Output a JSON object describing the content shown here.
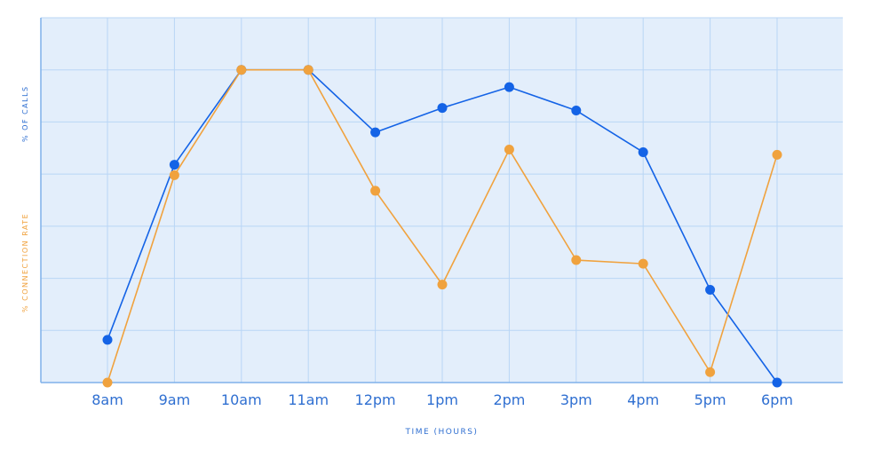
{
  "colors": {
    "plot_bg": "#e3eefb",
    "grid": "#b9d6f6",
    "axis": "#7fb1ea",
    "calls": "#1463e6",
    "connection": "#f0a23e",
    "tick_text": "#2f6fd1"
  },
  "chart_data": {
    "type": "line",
    "x": [
      "8am",
      "9am",
      "10am",
      "11am",
      "12pm",
      "1pm",
      "2pm",
      "3pm",
      "4pm",
      "5pm",
      "6pm"
    ],
    "xlabel": "TIME (HOURS)",
    "ylabels": {
      "calls": "% OF CALLS",
      "connection": "% CONNECTION RATE"
    },
    "ylim": [
      0,
      7
    ],
    "grid": true,
    "series": [
      {
        "key": "calls",
        "color": "#1463e6",
        "values": [
          0.82,
          4.18,
          6.0,
          6.0,
          4.8,
          5.27,
          5.67,
          5.22,
          4.42,
          1.78,
          0.0
        ]
      },
      {
        "key": "connection",
        "color": "#f0a23e",
        "values": [
          0.0,
          3.98,
          6.0,
          6.0,
          3.68,
          1.88,
          4.47,
          2.35,
          2.28,
          0.2,
          4.37
        ]
      }
    ]
  }
}
